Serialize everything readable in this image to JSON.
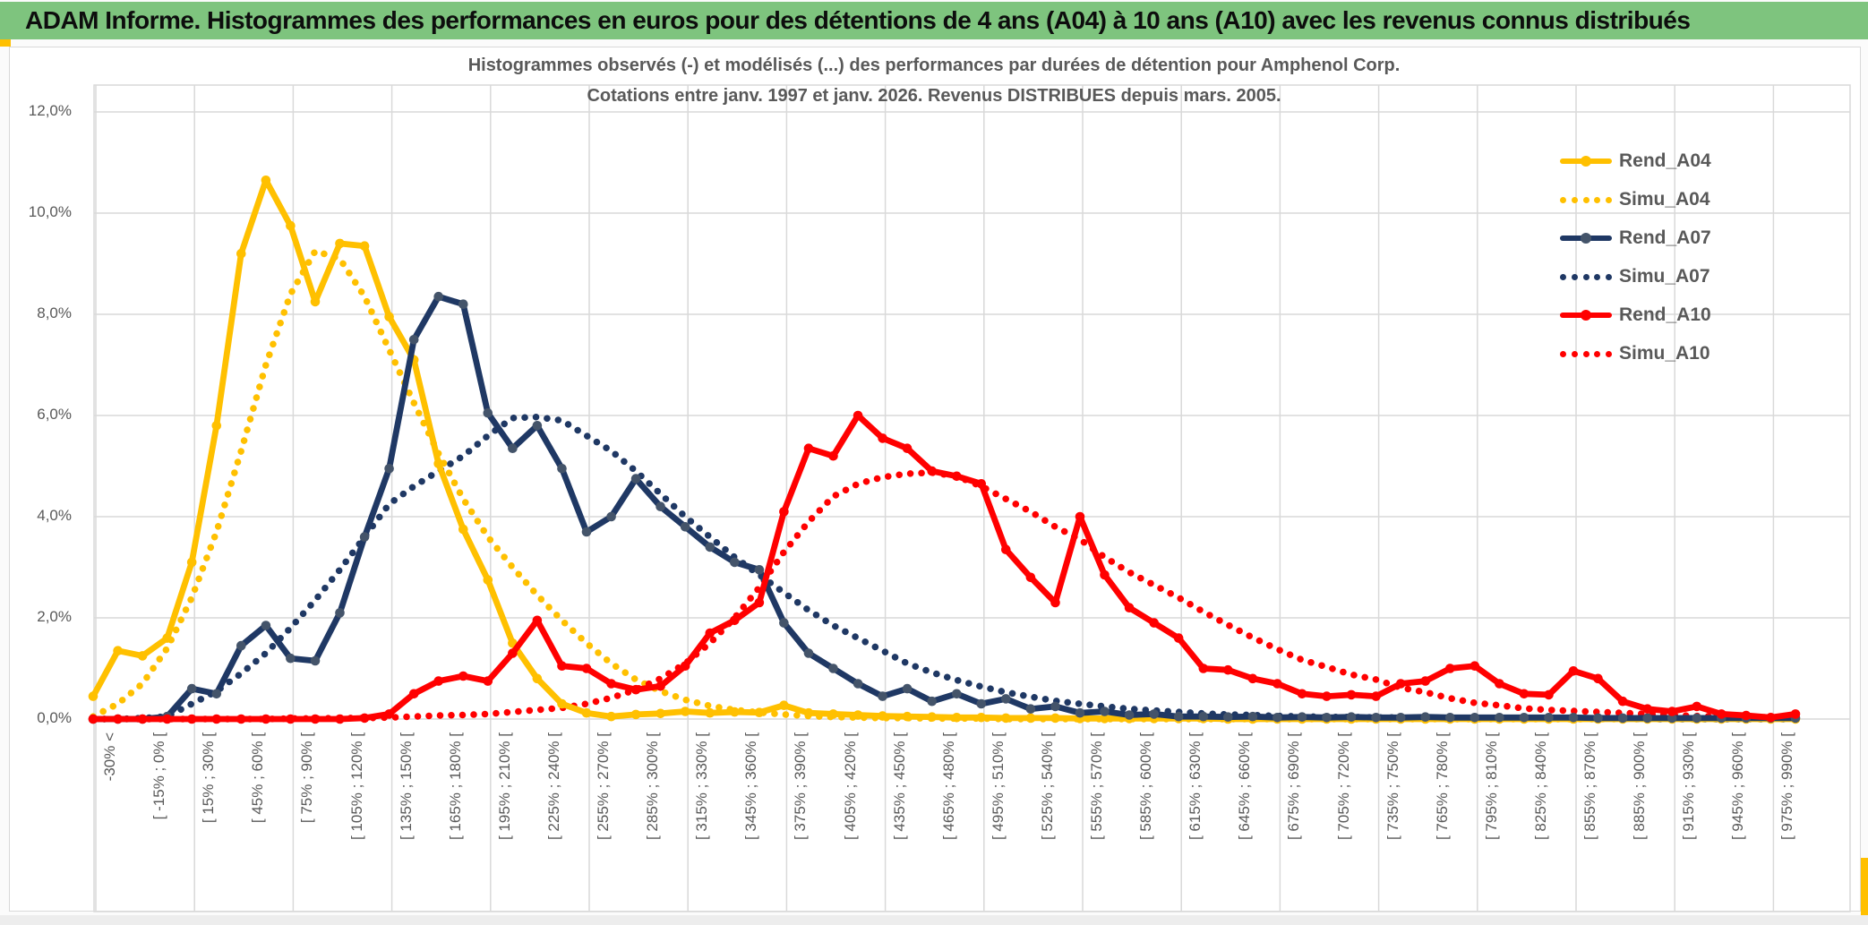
{
  "header": {
    "title": "ADAM Informe. Histogrammes des performances en euros pour des détentions de 4 ans (A04) à 10 ans (A10) avec les revenus connus distribués"
  },
  "chart": {
    "title_line1": "Histogrammes observés (-) et modélisés (...) des performances par durées de détention pour Amphenol Corp.",
    "title_line2": "Cotations entre janv. 1997 et janv. 2026. Revenus DISTRIBUES depuis mars. 2005.",
    "y_ticks": [
      "0,0%",
      "2,0%",
      "4,0%",
      "6,0%",
      "8,0%",
      "10,0%",
      "12,0%"
    ]
  },
  "chart_data": {
    "type": "line",
    "title": "Histogrammes observés (-) et modélisés (...) des performances par durées de détention pour Amphenol Corp.",
    "subtitle": "Cotations entre janv. 1997 et janv. 2026. Revenus DISTRIBUES depuis mars. 2005.",
    "ylim": [
      0,
      12
    ],
    "ylabel_format": "percent with comma decimal, step 2,0%",
    "grid": true,
    "legend_position": "right",
    "n_points": 70,
    "points_per_label": 2,
    "x_tick_labels": [
      "-30% <",
      "[ -15% ; 0% [",
      "[ 15% ; 30% [",
      "[ 45% ; 60% [",
      "[ 75% ; 90% [",
      "[ 105% ; 120% [",
      "[ 135% ; 150% [",
      "[ 165% ; 180% [",
      "[ 195% ; 210% [",
      "[ 225% ; 240% [",
      "[ 255% ; 270% [",
      "[ 285% ; 300% [",
      "[ 315% ; 330% [",
      "[ 345% ; 360% [",
      "[ 375% ; 390% [",
      "[ 405% ; 420% [",
      "[ 435% ; 450% [",
      "[ 465% ; 480% [",
      "[ 495% ; 510% [",
      "[ 525% ; 540% [",
      "[ 555% ; 570% [",
      "[ 585% ; 600% [",
      "[ 615% ; 630% [",
      "[ 645% ; 660% [",
      "[ 675% ; 690% [",
      "[ 705% ; 720% [",
      "[ 735% ; 750% [",
      "[ 765% ; 780% [",
      "[ 795% ; 810% [",
      "[ 825% ; 840% [",
      "[ 855% ; 870% [",
      "[ 885% ; 900% [",
      "[ 915% ; 930% [",
      "[ 945% ; 960% [",
      "[ 975% ; 990% ["
    ],
    "series": [
      {
        "name": "Rend_A04",
        "color": "#FFC000",
        "line": "solid",
        "marker": true,
        "marker_color": "#FFC000",
        "values": [
          0.45,
          1.35,
          1.25,
          1.6,
          3.1,
          5.8,
          9.2,
          10.65,
          9.75,
          8.25,
          9.4,
          9.35,
          7.95,
          7.1,
          5.05,
          3.75,
          2.75,
          1.5,
          0.8,
          0.3,
          0.12,
          0.05,
          0.09,
          0.11,
          0.15,
          0.12,
          0.14,
          0.13,
          0.27,
          0.12,
          0.1,
          0.08,
          0.06,
          0.05,
          0.04,
          0.03,
          0.03,
          0.02,
          0.02,
          0.02,
          0.01,
          0.01,
          0.01,
          0.01,
          0.01,
          0.01,
          0,
          0,
          0,
          0,
          0,
          0,
          0,
          0,
          0,
          0,
          0,
          0,
          0,
          0,
          0,
          0,
          0,
          0,
          0,
          0,
          0,
          0,
          0,
          0
        ]
      },
      {
        "name": "Simu_A04",
        "color": "#FFC000",
        "line": "dotted",
        "marker": false,
        "marker_color": "#FFC000",
        "values": [
          0.05,
          0.3,
          0.7,
          1.4,
          2.4,
          3.7,
          5.3,
          7.0,
          8.4,
          9.25,
          9.1,
          8.35,
          7.3,
          6.25,
          5.25,
          4.35,
          3.6,
          3.0,
          2.45,
          1.95,
          1.5,
          1.1,
          0.78,
          0.55,
          0.38,
          0.26,
          0.18,
          0.13,
          0.09,
          0.06,
          0.04,
          0.03,
          0.02,
          0.02,
          0.01,
          0.01,
          0.01,
          0,
          0,
          0,
          0,
          0,
          0,
          0,
          0,
          0,
          0,
          0,
          0,
          0,
          0,
          0,
          0,
          0,
          0,
          0,
          0,
          0,
          0,
          0,
          0,
          0,
          0,
          0,
          0,
          0,
          0,
          0,
          0,
          0
        ]
      },
      {
        "name": "Rend_A07",
        "color": "#1F3864",
        "line": "solid",
        "marker": true,
        "marker_color": "#44546A",
        "values": [
          0,
          0,
          0,
          0.05,
          0.6,
          0.5,
          1.45,
          1.85,
          1.2,
          1.15,
          2.1,
          3.6,
          4.95,
          7.5,
          8.35,
          8.2,
          6.05,
          5.35,
          5.8,
          4.95,
          3.7,
          4.0,
          4.75,
          4.2,
          3.8,
          3.4,
          3.1,
          2.95,
          1.9,
          1.3,
          1.0,
          0.7,
          0.45,
          0.6,
          0.35,
          0.5,
          0.3,
          0.4,
          0.2,
          0.25,
          0.12,
          0.15,
          0.08,
          0.1,
          0.05,
          0.05,
          0.04,
          0.05,
          0.03,
          0.04,
          0.03,
          0.04,
          0.03,
          0.03,
          0.04,
          0.03,
          0.03,
          0.03,
          0.03,
          0.03,
          0.03,
          0.02,
          0.02,
          0.02,
          0.02,
          0.02,
          0.02,
          0.02,
          0.02,
          0.02
        ]
      },
      {
        "name": "Simu_A07",
        "color": "#1F3864",
        "line": "dotted",
        "marker": false,
        "marker_color": "#1F3864",
        "values": [
          0,
          0,
          0.02,
          0.05,
          0.3,
          0.55,
          0.9,
          1.3,
          1.8,
          2.35,
          2.95,
          3.6,
          4.25,
          4.6,
          4.9,
          5.2,
          5.6,
          5.95,
          5.97,
          5.9,
          5.6,
          5.3,
          4.9,
          4.45,
          4.0,
          3.6,
          3.2,
          2.85,
          2.5,
          2.15,
          1.85,
          1.6,
          1.35,
          1.1,
          0.92,
          0.77,
          0.64,
          0.53,
          0.44,
          0.36,
          0.3,
          0.25,
          0.2,
          0.17,
          0.14,
          0.11,
          0.09,
          0.08,
          0.06,
          0.05,
          0.04,
          0.04,
          0.03,
          0.03,
          0.02,
          0.02,
          0.02,
          0.01,
          0.01,
          0.01,
          0.01,
          0.01,
          0.01,
          0,
          0,
          0,
          0,
          0,
          0,
          0
        ]
      },
      {
        "name": "Rend_A10",
        "color": "#FF0000",
        "line": "solid",
        "marker": true,
        "marker_color": "#FF0000",
        "values": [
          0,
          0,
          0,
          0,
          0,
          0,
          0,
          0,
          0,
          0,
          0,
          0.02,
          0.1,
          0.5,
          0.75,
          0.85,
          0.75,
          1.3,
          1.95,
          1.05,
          1.0,
          0.7,
          0.58,
          0.65,
          1.05,
          1.7,
          1.95,
          2.3,
          4.1,
          5.35,
          5.2,
          6.0,
          5.55,
          5.35,
          4.9,
          4.8,
          4.65,
          3.35,
          2.8,
          2.3,
          4.0,
          2.85,
          2.2,
          1.9,
          1.6,
          1.0,
          0.97,
          0.8,
          0.7,
          0.5,
          0.45,
          0.48,
          0.45,
          0.7,
          0.75,
          1.0,
          1.05,
          0.7,
          0.5,
          0.48,
          0.95,
          0.8,
          0.35,
          0.2,
          0.15,
          0.25,
          0.1,
          0.07,
          0.03,
          0.1
        ]
      },
      {
        "name": "Simu_A10",
        "color": "#FF0000",
        "line": "dotted",
        "marker": false,
        "marker_color": "#FF0000",
        "values": [
          0,
          0,
          0,
          0,
          0,
          0,
          0,
          0,
          0.01,
          0.01,
          0.02,
          0.02,
          0.03,
          0.05,
          0.07,
          0.08,
          0.1,
          0.14,
          0.18,
          0.22,
          0.3,
          0.42,
          0.58,
          0.8,
          1.1,
          1.5,
          2.0,
          2.6,
          3.3,
          3.9,
          4.4,
          4.65,
          4.78,
          4.85,
          4.87,
          4.8,
          4.6,
          4.35,
          4.1,
          3.8,
          3.55,
          3.2,
          2.9,
          2.65,
          2.4,
          2.12,
          1.86,
          1.61,
          1.38,
          1.17,
          1.03,
          0.88,
          0.78,
          0.62,
          0.53,
          0.41,
          0.32,
          0.27,
          0.21,
          0.18,
          0.16,
          0.14,
          0.12,
          0.1,
          0.08,
          0.06,
          0.05,
          0.04,
          0.03,
          0.03
        ]
      }
    ],
    "colors": {
      "gold": "#FFC000",
      "navy": "#1F3864",
      "red": "#FF0000",
      "grid": "#D9D9D9",
      "text": "#595959",
      "header_green": "#7EC47E"
    }
  }
}
